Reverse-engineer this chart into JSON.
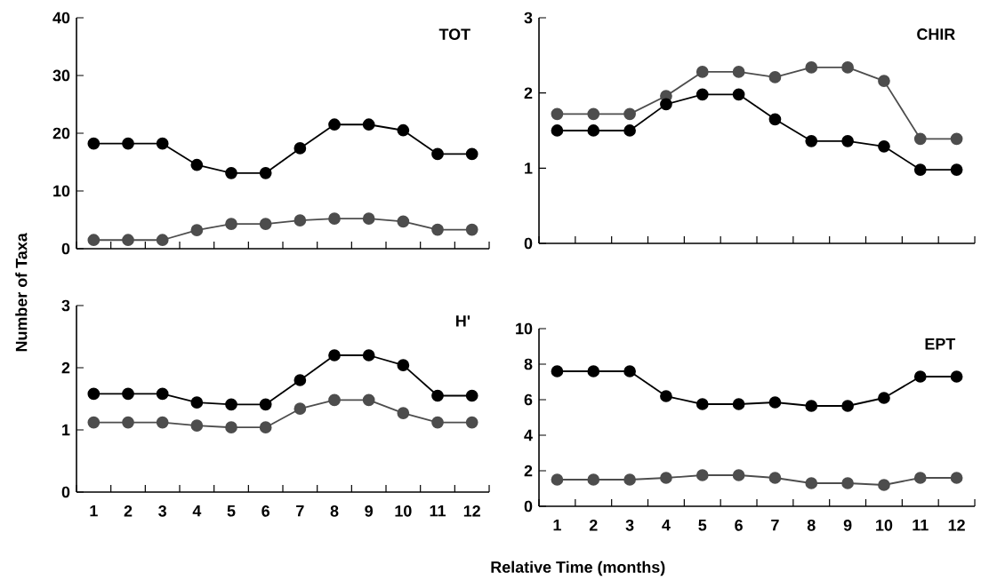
{
  "chart_data": [
    {
      "type": "line",
      "title": "TOT",
      "ylabel": "Number of Taxa",
      "categories": [
        "1",
        "2",
        "3",
        "4",
        "5",
        "6",
        "7",
        "8",
        "9",
        "10",
        "11",
        "12"
      ],
      "tick_labels": "y",
      "marker": "circle",
      "ylim": [
        0,
        40
      ],
      "yticks": [
        0,
        10,
        20,
        30,
        40
      ],
      "series": [
        {
          "color": "#000000",
          "values": [
            18.2,
            18.2,
            18.2,
            14.5,
            13.1,
            13.1,
            17.4,
            21.5,
            21.5,
            20.5,
            16.4,
            16.4
          ]
        },
        {
          "color": "#4d4d4d",
          "values": [
            1.5,
            1.5,
            1.5,
            3.2,
            4.3,
            4.3,
            4.9,
            5.2,
            5.2,
            4.7,
            3.3,
            3.3
          ]
        }
      ]
    },
    {
      "type": "line",
      "title": "CHIR",
      "categories": [
        "1",
        "2",
        "3",
        "4",
        "5",
        "6",
        "7",
        "8",
        "9",
        "10",
        "11",
        "12"
      ],
      "tick_labels": "y",
      "marker": "circle",
      "ylim": [
        0,
        3
      ],
      "yticks": [
        0,
        1,
        2,
        3
      ],
      "series": [
        {
          "color": "#4d4d4d",
          "values": [
            1.72,
            1.72,
            1.72,
            1.96,
            2.28,
            2.28,
            2.21,
            2.34,
            2.34,
            2.16,
            1.39,
            1.39
          ]
        },
        {
          "color": "#000000",
          "values": [
            1.5,
            1.5,
            1.5,
            1.85,
            1.98,
            1.98,
            1.65,
            1.36,
            1.36,
            1.29,
            0.98,
            0.98
          ]
        }
      ]
    },
    {
      "type": "line",
      "title": "H'",
      "xlabel": "Relative Time (months)",
      "categories": [
        "1",
        "2",
        "3",
        "4",
        "5",
        "6",
        "7",
        "8",
        "9",
        "10",
        "11",
        "12"
      ],
      "marker": "circle",
      "ylim": [
        0,
        3
      ],
      "yticks": [
        0,
        1,
        2,
        3
      ],
      "series": [
        {
          "color": "#000000",
          "values": [
            1.58,
            1.58,
            1.58,
            1.44,
            1.41,
            1.41,
            1.8,
            2.2,
            2.2,
            2.04,
            1.55,
            1.55
          ]
        },
        {
          "color": "#4d4d4d",
          "values": [
            1.12,
            1.12,
            1.12,
            1.07,
            1.04,
            1.04,
            1.34,
            1.48,
            1.48,
            1.27,
            1.12,
            1.12
          ]
        }
      ]
    },
    {
      "type": "line",
      "title": "EPT",
      "categories": [
        "1",
        "2",
        "3",
        "4",
        "5",
        "6",
        "7",
        "8",
        "9",
        "10",
        "11",
        "12"
      ],
      "marker": "circle",
      "ylim": [
        0,
        10
      ],
      "yticks": [
        0,
        2,
        4,
        6,
        8,
        10
      ],
      "series": [
        {
          "color": "#000000",
          "values": [
            7.6,
            7.6,
            7.6,
            6.2,
            5.75,
            5.75,
            5.85,
            5.65,
            5.65,
            6.1,
            7.3,
            7.3
          ]
        },
        {
          "color": "#4d4d4d",
          "values": [
            1.5,
            1.5,
            1.5,
            1.6,
            1.75,
            1.75,
            1.6,
            1.3,
            1.3,
            1.2,
            1.6,
            1.6
          ]
        }
      ]
    }
  ]
}
